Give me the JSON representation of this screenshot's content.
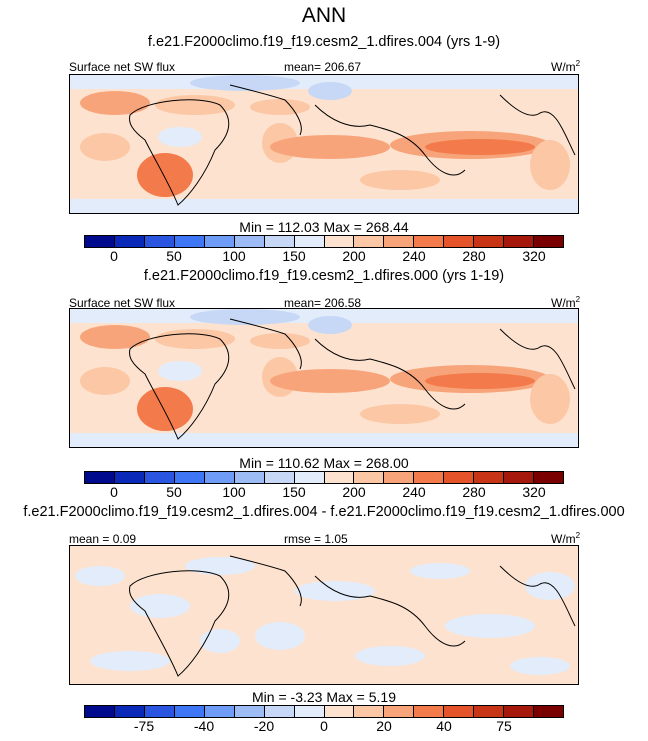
{
  "figure": {
    "title": "ANN"
  },
  "panels": [
    {
      "subtitle": "f.e21.F2000climo.f19_f19.cesm2_1.dfires.004 (yrs 1-9)",
      "left_label": "Surface net SW flux",
      "center_label": "mean= 206.67",
      "units": "W/m",
      "units_sup": "2",
      "minmax": "Min = 112.03 Max = 268.44",
      "colorbar_ticks": [
        "0",
        "50",
        "100",
        "150",
        "200",
        "240",
        "280",
        "320"
      ]
    },
    {
      "subtitle": "f.e21.F2000climo.f19_f19.cesm2_1.dfires.000 (yrs 1-19)",
      "left_label": "Surface net SW flux",
      "center_label": "mean= 206.58",
      "units": "W/m",
      "units_sup": "2",
      "minmax": "Min = 110.62 Max = 268.00",
      "colorbar_ticks": [
        "0",
        "50",
        "100",
        "150",
        "200",
        "240",
        "280",
        "320"
      ]
    },
    {
      "subtitle": "f.e21.F2000climo.f19_f19.cesm2_1.dfires.004 - f.e21.F2000climo.f19_f19.cesm2_1.dfires.000",
      "left_label": "mean =   0.09",
      "center_label": "rmse =   1.05",
      "units": "W/m",
      "units_sup": "2",
      "minmax": "Min =  -3.23 Max =   5.19",
      "colorbar_ticks": [
        "-75",
        "-40",
        "-20",
        "0",
        "20",
        "40",
        "75"
      ]
    }
  ],
  "chart_data": [
    {
      "type": "heatmap",
      "title": "ANN",
      "subtitle": "f.e21.F2000climo.f19_f19.cesm2_1.dfires.004 (yrs 1-9)",
      "variable": "Surface net SW flux",
      "units": "W/m2",
      "mean": 206.67,
      "min": 112.03,
      "max": 268.44,
      "colorbar_levels": [
        0,
        25,
        50,
        75,
        100,
        125,
        150,
        175,
        200,
        220,
        240,
        260,
        280,
        300,
        320
      ],
      "colorbar_ticks": [
        0,
        50,
        100,
        150,
        200,
        240,
        280,
        320
      ],
      "colors": [
        "#000a8c",
        "#0b29b8",
        "#2a55e0",
        "#3f76f5",
        "#6f9cf7",
        "#9dbbf5",
        "#c6d8f6",
        "#e2ecfa",
        "#fde3cf",
        "#fbc7a5",
        "#f8a47b",
        "#f27a4b",
        "#e5532a",
        "#c83416",
        "#a5180b",
        "#7a0000"
      ]
    },
    {
      "type": "heatmap",
      "subtitle": "f.e21.F2000climo.f19_f19.cesm2_1.dfires.000 (yrs 1-19)",
      "variable": "Surface net SW flux",
      "units": "W/m2",
      "mean": 206.58,
      "min": 110.62,
      "max": 268.0,
      "colorbar_levels": [
        0,
        25,
        50,
        75,
        100,
        125,
        150,
        175,
        200,
        220,
        240,
        260,
        280,
        300,
        320
      ],
      "colorbar_ticks": [
        0,
        50,
        100,
        150,
        200,
        240,
        280,
        320
      ]
    },
    {
      "type": "heatmap",
      "subtitle": "f.e21.F2000climo.f19_f19.cesm2_1.dfires.004 - f.e21.F2000climo.f19_f19.cesm2_1.dfires.000",
      "units": "W/m2",
      "mean": 0.09,
      "rmse": 1.05,
      "min": -3.23,
      "max": 5.19,
      "colorbar_ticks": [
        -75,
        -40,
        -20,
        0,
        20,
        40,
        75
      ]
    }
  ],
  "colormap": [
    "#000a8c",
    "#0b29b8",
    "#2a55e0",
    "#3f76f5",
    "#6f9cf7",
    "#9dbbf5",
    "#c6d8f6",
    "#e2ecfa",
    "#fde3cf",
    "#fbc7a5",
    "#f8a47b",
    "#f27a4b",
    "#e5532a",
    "#c83416",
    "#a5180b",
    "#7a0000"
  ]
}
